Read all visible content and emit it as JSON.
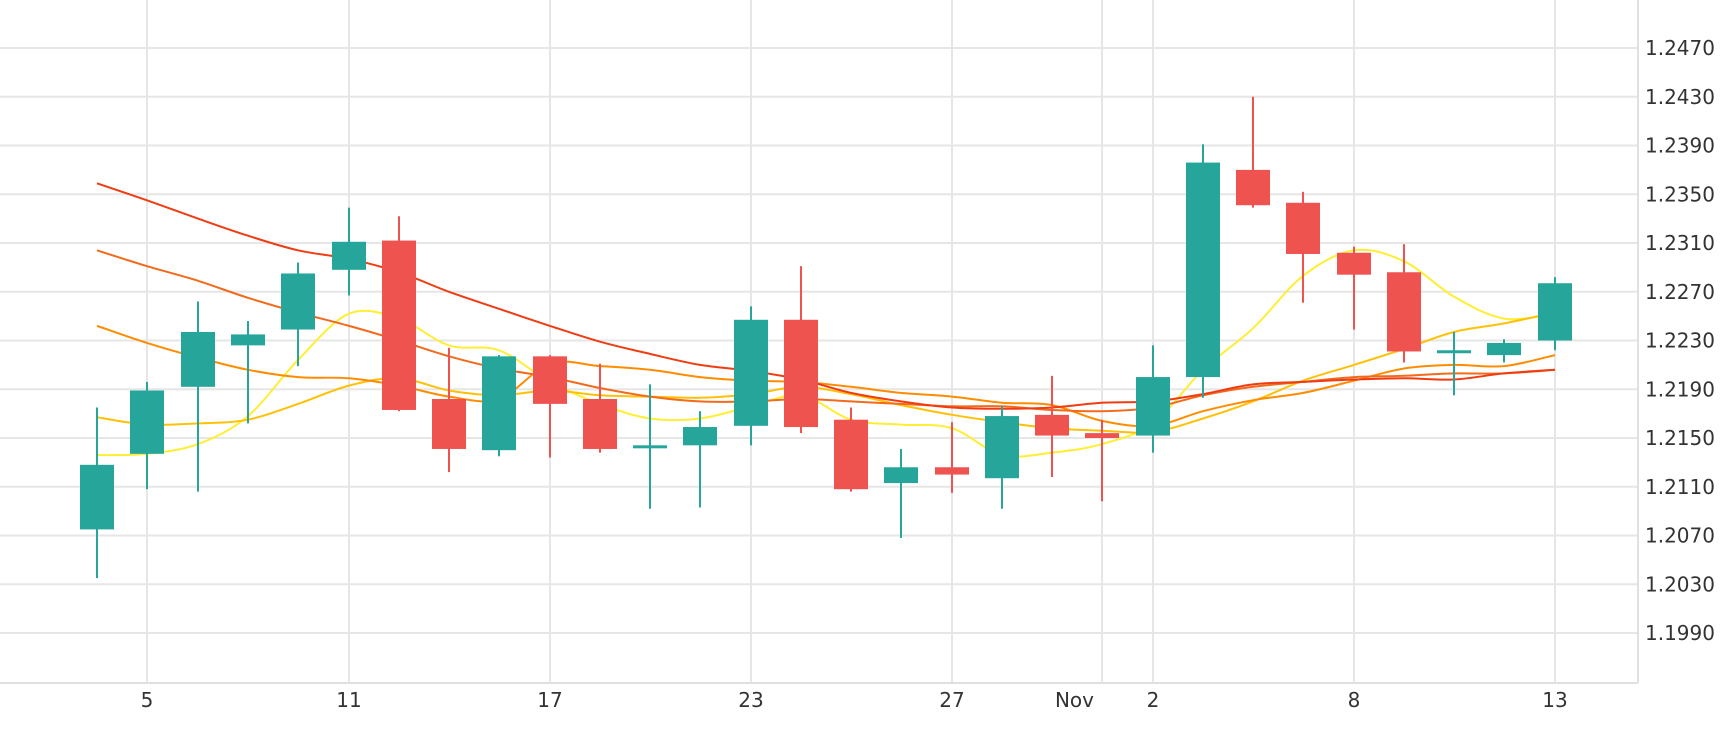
{
  "chart_data": {
    "type": "candlestick",
    "x_tick_labels": [
      "5",
      "11",
      "17",
      "23",
      "27",
      "Nov",
      "2",
      "8",
      "13"
    ],
    "y_tick_labels": [
      "1.2470",
      "1.2430",
      "1.2390",
      "1.2350",
      "1.2310",
      "1.2270",
      "1.2230",
      "1.2190",
      "1.2150",
      "1.2110",
      "1.2070",
      "1.2030",
      "1.1990"
    ],
    "ylim": [
      1.1952,
      1.2508
    ],
    "grid": true,
    "colors": {
      "up": "#26a69a",
      "down": "#ef5350",
      "grid": "#e6e6e6",
      "axis_text": "#333333"
    },
    "candles": [
      {
        "date": "Oct 4",
        "open": 1.2075,
        "high": 1.2175,
        "low": 1.2035,
        "close": 1.2128
      },
      {
        "date": "Oct 5",
        "open": 1.2137,
        "high": 1.2196,
        "low": 1.2108,
        "close": 1.2189
      },
      {
        "date": "Oct 6",
        "open": 1.2192,
        "high": 1.2262,
        "low": 1.2106,
        "close": 1.2237
      },
      {
        "date": "Oct 8",
        "open": 1.2226,
        "high": 1.2246,
        "low": 1.2162,
        "close": 1.2235
      },
      {
        "date": "Oct 10",
        "open": 1.2239,
        "high": 1.2294,
        "low": 1.2209,
        "close": 1.2285
      },
      {
        "date": "Oct 11",
        "open": 1.2288,
        "high": 1.2339,
        "low": 1.2267,
        "close": 1.2311
      },
      {
        "date": "Oct 12",
        "open": 1.2312,
        "high": 1.2332,
        "low": 1.2172,
        "close": 1.2173
      },
      {
        "date": "Oct 14",
        "open": 1.2182,
        "high": 1.2224,
        "low": 1.2122,
        "close": 1.2141
      },
      {
        "date": "Oct 15",
        "open": 1.214,
        "high": 1.2218,
        "low": 1.2135,
        "close": 1.2217
      },
      {
        "date": "Oct 17",
        "open": 1.2217,
        "high": 1.2218,
        "low": 1.2134,
        "close": 1.2178
      },
      {
        "date": "Oct 18",
        "open": 1.2182,
        "high": 1.2211,
        "low": 1.2138,
        "close": 1.2141
      },
      {
        "date": "Oct 20",
        "open": 1.2142,
        "high": 1.2194,
        "low": 1.2092,
        "close": 1.2144
      },
      {
        "date": "Oct 21",
        "open": 1.2144,
        "high": 1.2172,
        "low": 1.2093,
        "close": 1.2159
      },
      {
        "date": "Oct 23",
        "open": 1.216,
        "high": 1.2258,
        "low": 1.2144,
        "close": 1.2247
      },
      {
        "date": "Oct 24",
        "open": 1.2247,
        "high": 1.2291,
        "low": 1.2154,
        "close": 1.2159
      },
      {
        "date": "Oct 25",
        "open": 1.2165,
        "high": 1.2175,
        "low": 1.2106,
        "close": 1.2108
      },
      {
        "date": "Oct 26",
        "open": 1.2113,
        "high": 1.2141,
        "low": 1.2068,
        "close": 1.2126
      },
      {
        "date": "Oct 27",
        "open": 1.2126,
        "high": 1.2163,
        "low": 1.2105,
        "close": 1.212
      },
      {
        "date": "Oct 28",
        "open": 1.2117,
        "high": 1.2176,
        "low": 1.2092,
        "close": 1.2168
      },
      {
        "date": "Oct 30",
        "open": 1.2169,
        "high": 1.2201,
        "low": 1.2118,
        "close": 1.2152
      },
      {
        "date": "Nov 1",
        "open": 1.2154,
        "high": 1.2165,
        "low": 1.2098,
        "close": 1.215
      },
      {
        "date": "Nov 2",
        "open": 1.2152,
        "high": 1.2226,
        "low": 1.2138,
        "close": 1.22
      },
      {
        "date": "Nov 3",
        "open": 1.22,
        "high": 1.2391,
        "low": 1.2183,
        "close": 1.2376
      },
      {
        "date": "Nov 5",
        "open": 1.237,
        "high": 1.243,
        "low": 1.2339,
        "close": 1.2341
      },
      {
        "date": "Nov 6",
        "open": 1.2343,
        "high": 1.2352,
        "low": 1.2261,
        "close": 1.2301
      },
      {
        "date": "Nov 8",
        "open": 1.2302,
        "high": 1.2307,
        "low": 1.2239,
        "close": 1.2284
      },
      {
        "date": "Nov 9",
        "open": 1.2286,
        "high": 1.2309,
        "low": 1.2212,
        "close": 1.2221
      },
      {
        "date": "Nov 10",
        "open": 1.2222,
        "high": 1.2237,
        "low": 1.2185,
        "close": 1.2222
      },
      {
        "date": "Nov 12",
        "open": 1.2218,
        "high": 1.2231,
        "low": 1.2212,
        "close": 1.2228
      },
      {
        "date": "Nov 13",
        "open": 1.223,
        "high": 1.2282,
        "low": 1.2222,
        "close": 1.2277
      }
    ],
    "moving_averages": [
      {
        "color": "#ffee33",
        "values": [
          1.2136,
          1.2137,
          1.2145,
          1.2168,
          1.2214,
          1.2252,
          1.2248,
          1.2226,
          1.2222,
          1.2196,
          1.2178,
          1.2166,
          1.2166,
          1.2176,
          1.2185,
          1.2165,
          1.2161,
          1.2158,
          1.2136,
          1.2138,
          1.2145,
          1.2162,
          1.2206,
          1.224,
          1.2283,
          1.2304,
          1.2295,
          1.2266,
          1.2248,
          1.2252
        ]
      },
      {
        "color": "#ffc107",
        "values": [
          1.2167,
          1.2161,
          1.2162,
          1.2165,
          1.2178,
          1.2193,
          1.2199,
          1.2189,
          1.2185,
          1.2189,
          1.2185,
          1.2184,
          1.2183,
          1.2186,
          1.2192,
          1.2186,
          1.2177,
          1.2169,
          1.2163,
          1.2158,
          1.2156,
          1.2155,
          1.2166,
          1.218,
          1.2197,
          1.221,
          1.2223,
          1.2237,
          1.2244,
          1.2253
        ]
      },
      {
        "color": "#ff8c00",
        "values": [
          1.2242,
          1.2228,
          1.2216,
          1.2206,
          1.22,
          1.2199,
          1.2193,
          1.2184,
          1.2182,
          1.2211,
          1.2209,
          1.2206,
          1.22,
          1.2197,
          1.2196,
          1.2192,
          1.2187,
          1.2184,
          1.2179,
          1.2177,
          1.2164,
          1.216,
          1.2172,
          1.2181,
          1.2187,
          1.2197,
          1.2207,
          1.221,
          1.2209,
          1.2218
        ]
      },
      {
        "color": "#f26a1b",
        "values": [
          1.2304,
          1.2291,
          1.2279,
          1.2265,
          1.2253,
          1.2242,
          1.223,
          1.2217,
          1.2207,
          1.22,
          1.2191,
          1.2184,
          1.218,
          1.218,
          1.2182,
          1.218,
          1.2178,
          1.2176,
          1.2176,
          1.2173,
          1.2172,
          1.2175,
          1.2185,
          1.2192,
          1.2196,
          1.22,
          1.2201,
          1.2203,
          1.2203,
          1.2206
        ]
      },
      {
        "color": "#f03c13",
        "values": [
          1.2359,
          1.2345,
          1.233,
          1.2316,
          1.2304,
          1.2297,
          1.2286,
          1.227,
          1.2256,
          1.2242,
          1.2229,
          1.2219,
          1.221,
          1.2205,
          1.2198,
          1.2187,
          1.218,
          1.2175,
          1.2174,
          1.2175,
          1.2179,
          1.218,
          1.2186,
          1.2194,
          1.2196,
          1.2198,
          1.2199,
          1.2198,
          1.2203,
          1.2206
        ]
      }
    ]
  }
}
